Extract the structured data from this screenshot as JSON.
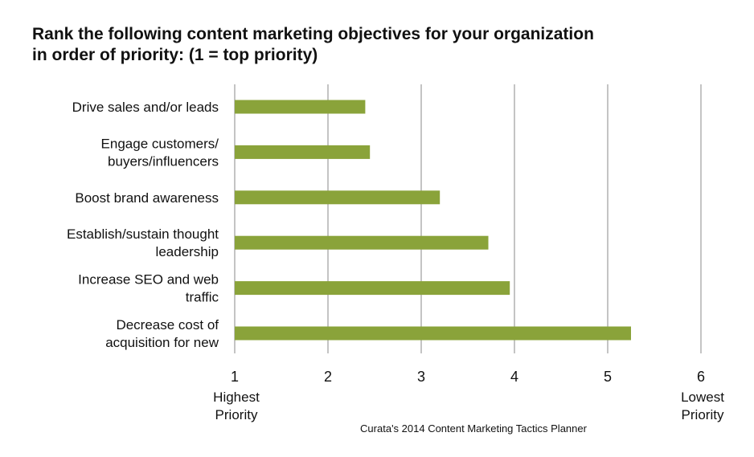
{
  "chart_data": {
    "type": "bar",
    "orientation": "horizontal",
    "title": "Rank the following content marketing objectives for your organization in order of priority: (1 = top priority)",
    "categories": [
      [
        "Drive sales and/or leads"
      ],
      [
        "Engage customers/",
        "buyers/influencers"
      ],
      [
        "Boost brand awareness"
      ],
      [
        "Establish/sustain thought",
        "leadership"
      ],
      [
        "Increase SEO and web",
        "traffic"
      ],
      [
        "Decrease cost of",
        "acquisition for new"
      ]
    ],
    "values": [
      2.4,
      2.45,
      3.2,
      3.72,
      3.95,
      5.25
    ],
    "xlim": [
      1,
      6
    ],
    "x_ticks": [
      "1",
      "2",
      "3",
      "4",
      "5",
      "6"
    ],
    "low_end_label": [
      "Highest",
      "Priority"
    ],
    "high_end_label": [
      "Lowest",
      "Priority"
    ],
    "grid": "vertical",
    "bar_color": "#8aa33a",
    "grid_color": "#c4c4c4",
    "source": "Curata's 2014 Content Marketing Tactics Planner"
  }
}
